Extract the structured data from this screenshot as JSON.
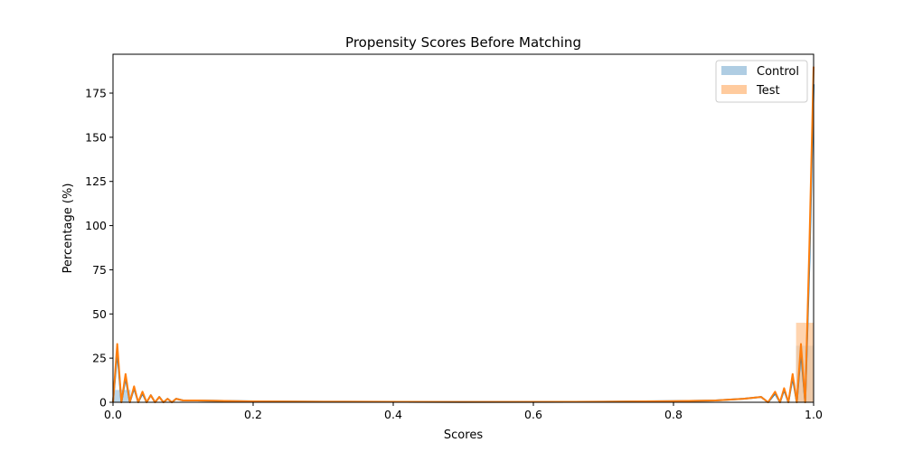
{
  "chart_data": {
    "type": "histogram",
    "title": "Propensity Scores Before Matching",
    "xlabel": "Scores",
    "ylabel": "Percentage (%)",
    "xlim": [
      0.0,
      1.0
    ],
    "ylim": [
      0,
      197
    ],
    "xticks": [
      "0.0",
      "0.2",
      "0.4",
      "0.6",
      "0.8",
      "1.0"
    ],
    "yticks": [
      "0",
      "25",
      "50",
      "75",
      "100",
      "125",
      "150",
      "175"
    ],
    "legend": {
      "position": "top-right"
    },
    "bins": [
      [
        0.0,
        0.025
      ],
      [
        0.975,
        1.0
      ]
    ],
    "series": [
      {
        "name": "Control",
        "color": "#1f77b4",
        "bar_color": "#a6c8e0",
        "bar_values": [
          7,
          32
        ],
        "kde_x": [
          0.0,
          0.006,
          0.012,
          0.018,
          0.024,
          0.03,
          0.036,
          0.042,
          0.048,
          0.054,
          0.06,
          0.066,
          0.072,
          0.078,
          0.084,
          0.09,
          0.1,
          0.12,
          0.15,
          0.2,
          0.3,
          0.5,
          0.7,
          0.8,
          0.86,
          0.9,
          0.925,
          0.935,
          0.945,
          0.952,
          0.958,
          0.964,
          0.97,
          0.976,
          0.982,
          0.988,
          0.994,
          1.0
        ],
        "kde_y": [
          0,
          29,
          0,
          14,
          0,
          8,
          0,
          5,
          0,
          4,
          0,
          3,
          0,
          2,
          0,
          2,
          1,
          1,
          0.8,
          0.5,
          0.3,
          0.2,
          0.3,
          0.6,
          1,
          2,
          3,
          0,
          5,
          0,
          7,
          0,
          14,
          0,
          29,
          0,
          80,
          180
        ]
      },
      {
        "name": "Test",
        "color": "#ff7f0e",
        "bar_color": "#ffc594",
        "bar_values": [
          0,
          45
        ],
        "kde_x": [
          0.0,
          0.006,
          0.012,
          0.018,
          0.024,
          0.03,
          0.036,
          0.042,
          0.048,
          0.054,
          0.06,
          0.066,
          0.072,
          0.078,
          0.084,
          0.09,
          0.1,
          0.12,
          0.15,
          0.2,
          0.3,
          0.5,
          0.7,
          0.8,
          0.86,
          0.9,
          0.925,
          0.935,
          0.945,
          0.952,
          0.958,
          0.964,
          0.97,
          0.976,
          0.982,
          0.988,
          0.994,
          1.0
        ],
        "kde_y": [
          0,
          33,
          0,
          16,
          0,
          9,
          0,
          6,
          0,
          4,
          0,
          3,
          0,
          2,
          0,
          2,
          1,
          1,
          0.8,
          0.5,
          0.3,
          0.2,
          0.3,
          0.6,
          1,
          2,
          3,
          0,
          6,
          0,
          8,
          0,
          16,
          0,
          33,
          0,
          90,
          190
        ]
      }
    ]
  }
}
